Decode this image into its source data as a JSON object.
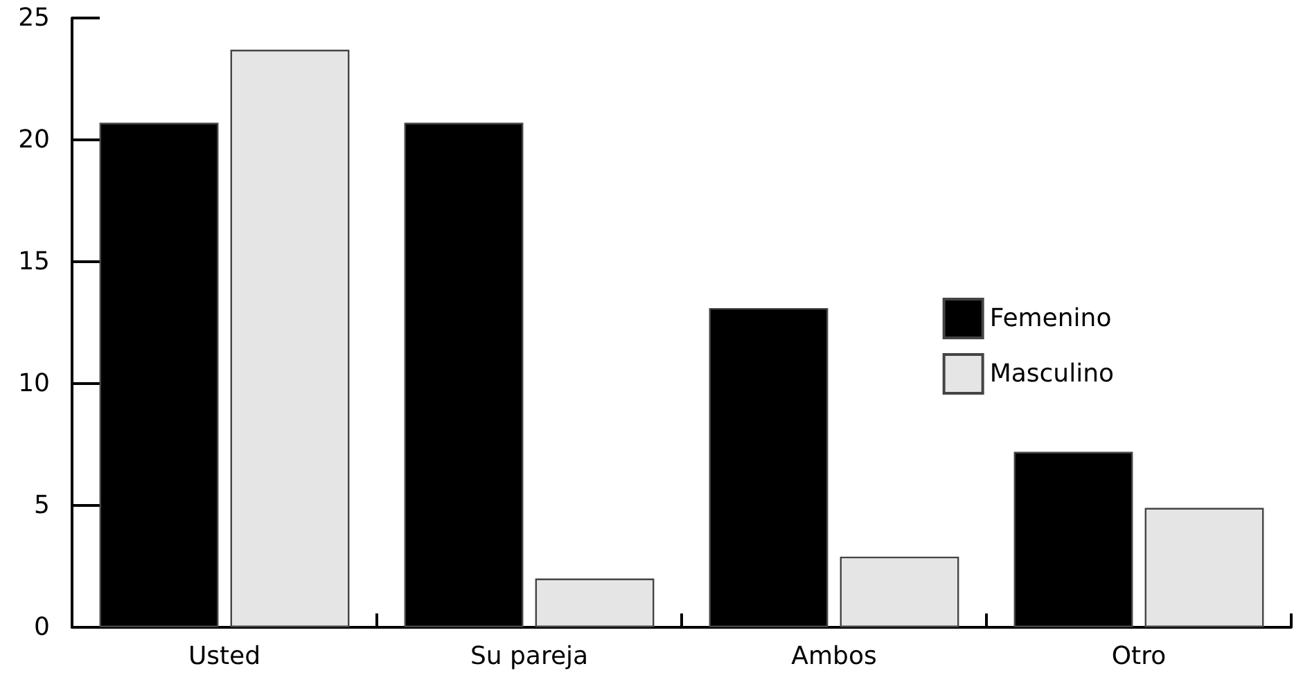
{
  "chart_data": {
    "type": "bar",
    "categories": [
      "Usted",
      "Su pareja",
      "Ambos",
      "Otro"
    ],
    "series": [
      {
        "name": "Femenino",
        "color": "#000000",
        "values": [
          20.7,
          20.7,
          13.1,
          7.2
        ]
      },
      {
        "name": "Masculino",
        "color": "#e5e5e5",
        "values": [
          23.7,
          2.0,
          2.9,
          4.9
        ]
      }
    ],
    "ylim": [
      0,
      25
    ],
    "yticks": [
      0,
      5,
      10,
      15,
      20,
      25
    ],
    "grid": false,
    "legend": "right"
  }
}
